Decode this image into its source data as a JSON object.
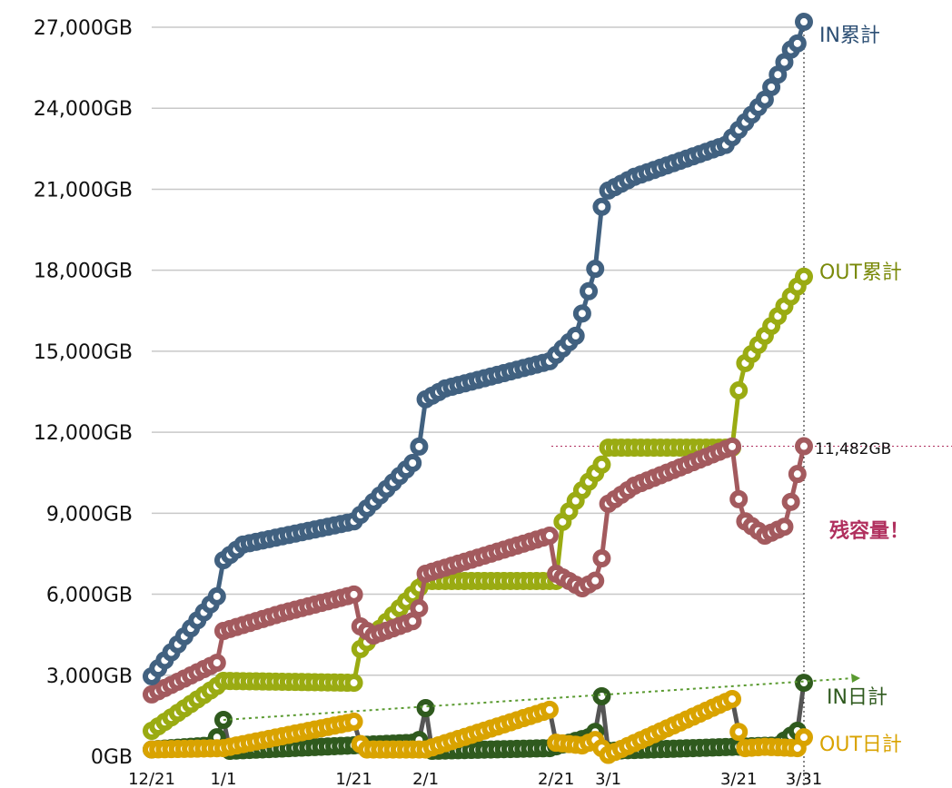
{
  "chart_data": {
    "type": "line",
    "title": "",
    "xlabel": "",
    "ylabel": "",
    "x_unit": "days since 12/21",
    "xlim": [
      0,
      100
    ],
    "ylim": [
      0,
      27000
    ],
    "grid": true,
    "y_ticks": [
      0,
      3000,
      6000,
      9000,
      12000,
      15000,
      18000,
      21000,
      24000,
      27000
    ],
    "y_tick_labels": [
      "0GB",
      "3,000GB",
      "6,000GB",
      "9,000GB",
      "12,000GB",
      "15,000GB",
      "18,000GB",
      "21,000GB",
      "24,000GB",
      "27,000GB"
    ],
    "x_ticks": [
      0,
      11,
      31,
      42,
      62,
      70,
      90,
      100
    ],
    "x_tick_labels": [
      "12/21",
      "1/1",
      "1/21",
      "2/1",
      "2/21",
      "3/1",
      "3/21",
      "3/31"
    ],
    "series": [
      {
        "name": "IN累計",
        "color": "#416180",
        "points": [
          [
            0,
            2960
          ],
          [
            10,
            5920
          ],
          [
            11,
            7260
          ],
          [
            14,
            7840
          ],
          [
            31,
            8700
          ],
          [
            40,
            10860
          ],
          [
            41,
            11470
          ],
          [
            42,
            13220
          ],
          [
            45,
            13620
          ],
          [
            61,
            14630
          ],
          [
            65,
            15570
          ],
          [
            68,
            18050
          ],
          [
            69,
            20350
          ],
          [
            70,
            20950
          ],
          [
            74,
            21460
          ],
          [
            88,
            22640
          ],
          [
            94,
            24320
          ],
          [
            98,
            26170
          ],
          [
            99,
            26400
          ],
          [
            100,
            27200
          ]
        ]
      },
      {
        "name": "OUT累計",
        "color": "#9aab12",
        "points": [
          [
            0,
            940
          ],
          [
            10,
            2600
          ],
          [
            11,
            2790
          ],
          [
            31,
            2720
          ],
          [
            32,
            3970
          ],
          [
            42,
            6490
          ],
          [
            62,
            6490
          ],
          [
            63,
            8680
          ],
          [
            66,
            9850
          ],
          [
            69,
            10800
          ],
          [
            70,
            11430
          ],
          [
            89,
            11430
          ],
          [
            90,
            13550
          ],
          [
            91,
            14560
          ],
          [
            94,
            15570
          ],
          [
            100,
            17760
          ]
        ]
      },
      {
        "name": "残容量",
        "color": "#a35a5e",
        "points": [
          [
            0,
            2290
          ],
          [
            10,
            3460
          ],
          [
            11,
            4640
          ],
          [
            20,
            5300
          ],
          [
            31,
            5990
          ],
          [
            32,
            4810
          ],
          [
            34,
            4470
          ],
          [
            40,
            5000
          ],
          [
            41,
            5480
          ],
          [
            42,
            6760
          ],
          [
            61,
            8170
          ],
          [
            62,
            6760
          ],
          [
            66,
            6220
          ],
          [
            68,
            6500
          ],
          [
            69,
            7330
          ],
          [
            70,
            9350
          ],
          [
            74,
            10020
          ],
          [
            89,
            11470
          ],
          [
            90,
            9520
          ],
          [
            91,
            8700
          ],
          [
            94,
            8170
          ],
          [
            97,
            8500
          ],
          [
            98,
            9420
          ],
          [
            100,
            11482
          ]
        ]
      },
      {
        "name": "IN日計",
        "color": "#2f5a1e",
        "points": [
          [
            0,
            250
          ],
          [
            9,
            400
          ],
          [
            10,
            700
          ],
          [
            11,
            1345
          ],
          [
            12,
            200
          ],
          [
            40,
            500
          ],
          [
            41,
            600
          ],
          [
            42,
            1780
          ],
          [
            43,
            200
          ],
          [
            61,
            300
          ],
          [
            67,
            700
          ],
          [
            68,
            900
          ],
          [
            69,
            2220
          ],
          [
            70,
            200
          ],
          [
            96,
            400
          ],
          [
            99,
            940
          ],
          [
            100,
            2720
          ]
        ]
      },
      {
        "name": "OUT日計",
        "color": "#d9a300",
        "points": [
          [
            0,
            250
          ],
          [
            11,
            300
          ],
          [
            31,
            1280
          ],
          [
            32,
            450
          ],
          [
            33,
            250
          ],
          [
            42,
            250
          ],
          [
            61,
            1720
          ],
          [
            62,
            500
          ],
          [
            66,
            400
          ],
          [
            68,
            600
          ],
          [
            69,
            300
          ],
          [
            70,
            50
          ],
          [
            89,
            2120
          ],
          [
            90,
            900
          ],
          [
            91,
            300
          ],
          [
            94,
            350
          ],
          [
            99,
            300
          ],
          [
            100,
            700
          ]
        ]
      }
    ],
    "trend_line": {
      "from": [
        11,
        1345
      ],
      "to": [
        108,
        2800
      ],
      "color": "#5a9a30"
    },
    "reference_line": {
      "value": 11482,
      "label": "11,482GB",
      "color": "#b03060"
    },
    "annotation": {
      "text": "残容量！",
      "color": "#b0305e"
    },
    "series_labels": {
      "in_total": "IN累計",
      "out_total": "OUT累計",
      "in_daily": "IN日計",
      "out_daily": "OUT日計"
    }
  }
}
